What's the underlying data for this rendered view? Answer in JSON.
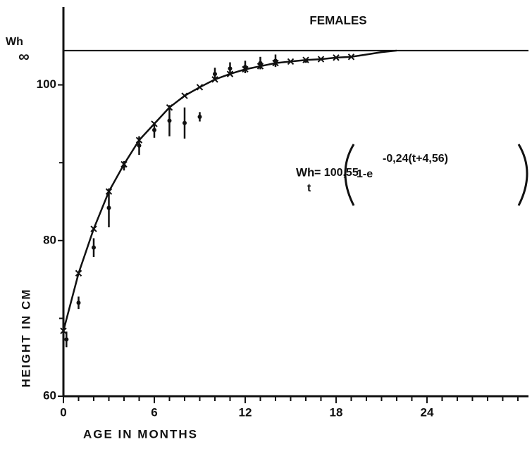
{
  "chart_data": {
    "type": "scatter",
    "title": "FEMALES",
    "x_label": "AGE IN MONTHS",
    "y_label": "HEIGHT IN CM",
    "xlim": [
      0,
      30.7
    ],
    "ylim": [
      60,
      110
    ],
    "xticks": [
      0,
      6,
      12,
      18,
      24
    ],
    "yticks": [
      60,
      80,
      100
    ],
    "minor_xticks": [
      1,
      2,
      3,
      4,
      5,
      7,
      8,
      9,
      10,
      11,
      13,
      14,
      15,
      16,
      17,
      19,
      20,
      21,
      22,
      23,
      25,
      26,
      27,
      28,
      29,
      30
    ],
    "minor_yticks": [
      70,
      90
    ],
    "asymptote": {
      "label": "Wh",
      "subscript": "∞",
      "value": 104.4
    },
    "formula": {
      "lhs": "Wh",
      "lhs_subscript": "t",
      "coefficient": "= 100,55",
      "base": "1-e",
      "exponent": "-0,24(t+4,56)"
    },
    "observed": {
      "x": [
        0.2,
        1,
        2,
        3,
        4,
        5,
        6,
        7,
        8,
        9,
        10,
        11,
        12,
        13,
        14,
        16
      ],
      "values": [
        67.3,
        72.0,
        79.1,
        84.2,
        89.6,
        92.2,
        94.2,
        95.4,
        95.1,
        95.9,
        101.4,
        102.1,
        102.3,
        102.8,
        103.1,
        103.1
      ],
      "errors": [
        1.0,
        0.8,
        1.2,
        2.5,
        0.6,
        1.2,
        1.0,
        2.0,
        2.0,
        0.6,
        0.8,
        0.8,
        0.8,
        0.8,
        0.8,
        0.2
      ]
    },
    "fitted": {
      "x": [
        0,
        1,
        2,
        3,
        4,
        5,
        6,
        7,
        8,
        9,
        10,
        11,
        12,
        13,
        14,
        15,
        16,
        17,
        18,
        19
      ],
      "values": [
        68.4,
        75.8,
        81.5,
        86.3,
        89.8,
        92.9,
        95.0,
        97.1,
        98.6,
        99.7,
        100.7,
        101.4,
        102.0,
        102.4,
        102.8,
        103.0,
        103.2,
        103.3,
        103.5,
        103.6
      ]
    },
    "curve": {
      "x": [
        0,
        1,
        2,
        3,
        4,
        5,
        6,
        7,
        8,
        9,
        10,
        11,
        12,
        13,
        14,
        15,
        16,
        17,
        18,
        19,
        20,
        21,
        22
      ],
      "values": [
        68.4,
        75.8,
        81.5,
        86.3,
        89.8,
        92.9,
        95.0,
        97.1,
        98.6,
        99.7,
        100.7,
        101.4,
        102.0,
        102.4,
        102.8,
        103.0,
        103.2,
        103.3,
        103.5,
        103.6,
        103.9,
        104.2,
        104.4
      ]
    }
  }
}
